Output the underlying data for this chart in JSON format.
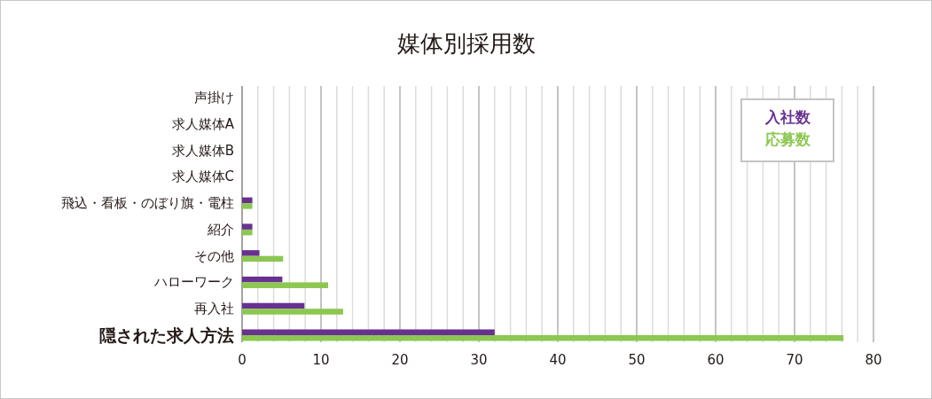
{
  "chart_data": {
    "type": "bar",
    "orientation": "horizontal",
    "title": "媒体別採用数",
    "categories": [
      "声掛け",
      "求人媒体A",
      "求人媒体B",
      "求人媒体C",
      "飛込・看板・のぼり旗・電柱",
      "紹介",
      "その他",
      "ハローワーク",
      "再入社",
      "隠された求人方法"
    ],
    "series": [
      {
        "name": "入社数",
        "color": "#68318f",
        "values": [
          0,
          0,
          0,
          0,
          1.3,
          1.3,
          2.2,
          5.1,
          7.9,
          32
        ]
      },
      {
        "name": "応募数",
        "color": "#8cc751",
        "values": [
          0,
          0,
          0,
          0,
          1.3,
          1.3,
          5.2,
          10.9,
          12.8,
          76.2
        ]
      }
    ],
    "xlim": [
      0,
      80
    ],
    "xticks": [
      0,
      {
        "value": 2,
        "label": null
      },
      {
        "value": 4,
        "label": null
      },
      {
        "value": 6,
        "label": null
      },
      {
        "value": 8,
        "label": null
      },
      10,
      {
        "value": 12,
        "label": null
      },
      {
        "value": 14,
        "label": null
      },
      {
        "value": 16,
        "label": null
      },
      {
        "value": 18,
        "label": null
      },
      20,
      {
        "value": 22,
        "label": null
      },
      {
        "value": 24,
        "label": null
      },
      {
        "value": 26,
        "label": null
      },
      {
        "value": 28,
        "label": null
      },
      30,
      {
        "value": 32,
        "label": null
      },
      {
        "value": 34,
        "label": null
      },
      {
        "value": 36,
        "label": null
      },
      {
        "value": 38,
        "label": null
      },
      40,
      {
        "value": 42,
        "label": null
      },
      {
        "value": 44,
        "label": null
      },
      {
        "value": 46,
        "label": null
      },
      {
        "value": 48,
        "label": null
      },
      50,
      {
        "value": 52,
        "label": null
      },
      {
        "value": 54,
        "label": null
      },
      {
        "value": 56,
        "label": null
      },
      {
        "value": 58,
        "label": null
      },
      60,
      {
        "value": 62,
        "label": null
      },
      {
        "value": 64,
        "label": null
      },
      {
        "value": 66,
        "label": null
      },
      {
        "value": 68,
        "label": null
      },
      70,
      {
        "value": 72,
        "label": null
      },
      {
        "value": 74,
        "label": null
      },
      {
        "value": 76,
        "label": null
      },
      {
        "value": 78,
        "label": null
      },
      80
    ],
    "grid": "x",
    "legend": "top right"
  }
}
